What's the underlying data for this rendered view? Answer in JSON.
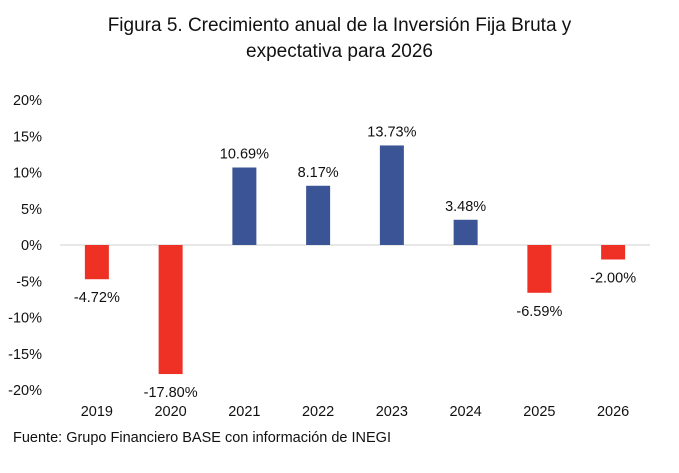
{
  "chart_data": {
    "type": "bar",
    "title_lines": [
      "Figura 5. Crecimiento anual de la Inversión Fija Bruta y",
      "expectativa para 2026"
    ],
    "source": "Fuente: Grupo Financiero BASE con información de INEGI",
    "categories": [
      "2019",
      "2020",
      "2021",
      "2022",
      "2023",
      "2024",
      "2025",
      "2026"
    ],
    "values": [
      -4.72,
      -17.8,
      10.69,
      8.17,
      13.73,
      3.48,
      -6.59,
      -2.0
    ],
    "data_labels": [
      "-4.72%",
      "-17.80%",
      "10.69%",
      "8.17%",
      "13.73%",
      "3.48%",
      "-6.59%",
      "-2.00%"
    ],
    "y_ticks": [
      20,
      15,
      10,
      5,
      0,
      -5,
      -10,
      -15,
      -20
    ],
    "y_tick_labels": [
      "20%",
      "15%",
      "10%",
      "5%",
      "0%",
      "-5%",
      "-10%",
      "-15%",
      "-20%"
    ],
    "ylim": [
      -20,
      20
    ],
    "grid": false,
    "legend": "none",
    "colors": {
      "positive": "#3B5495",
      "negative": "#EE3124",
      "axis": "#D9D9D9"
    }
  }
}
